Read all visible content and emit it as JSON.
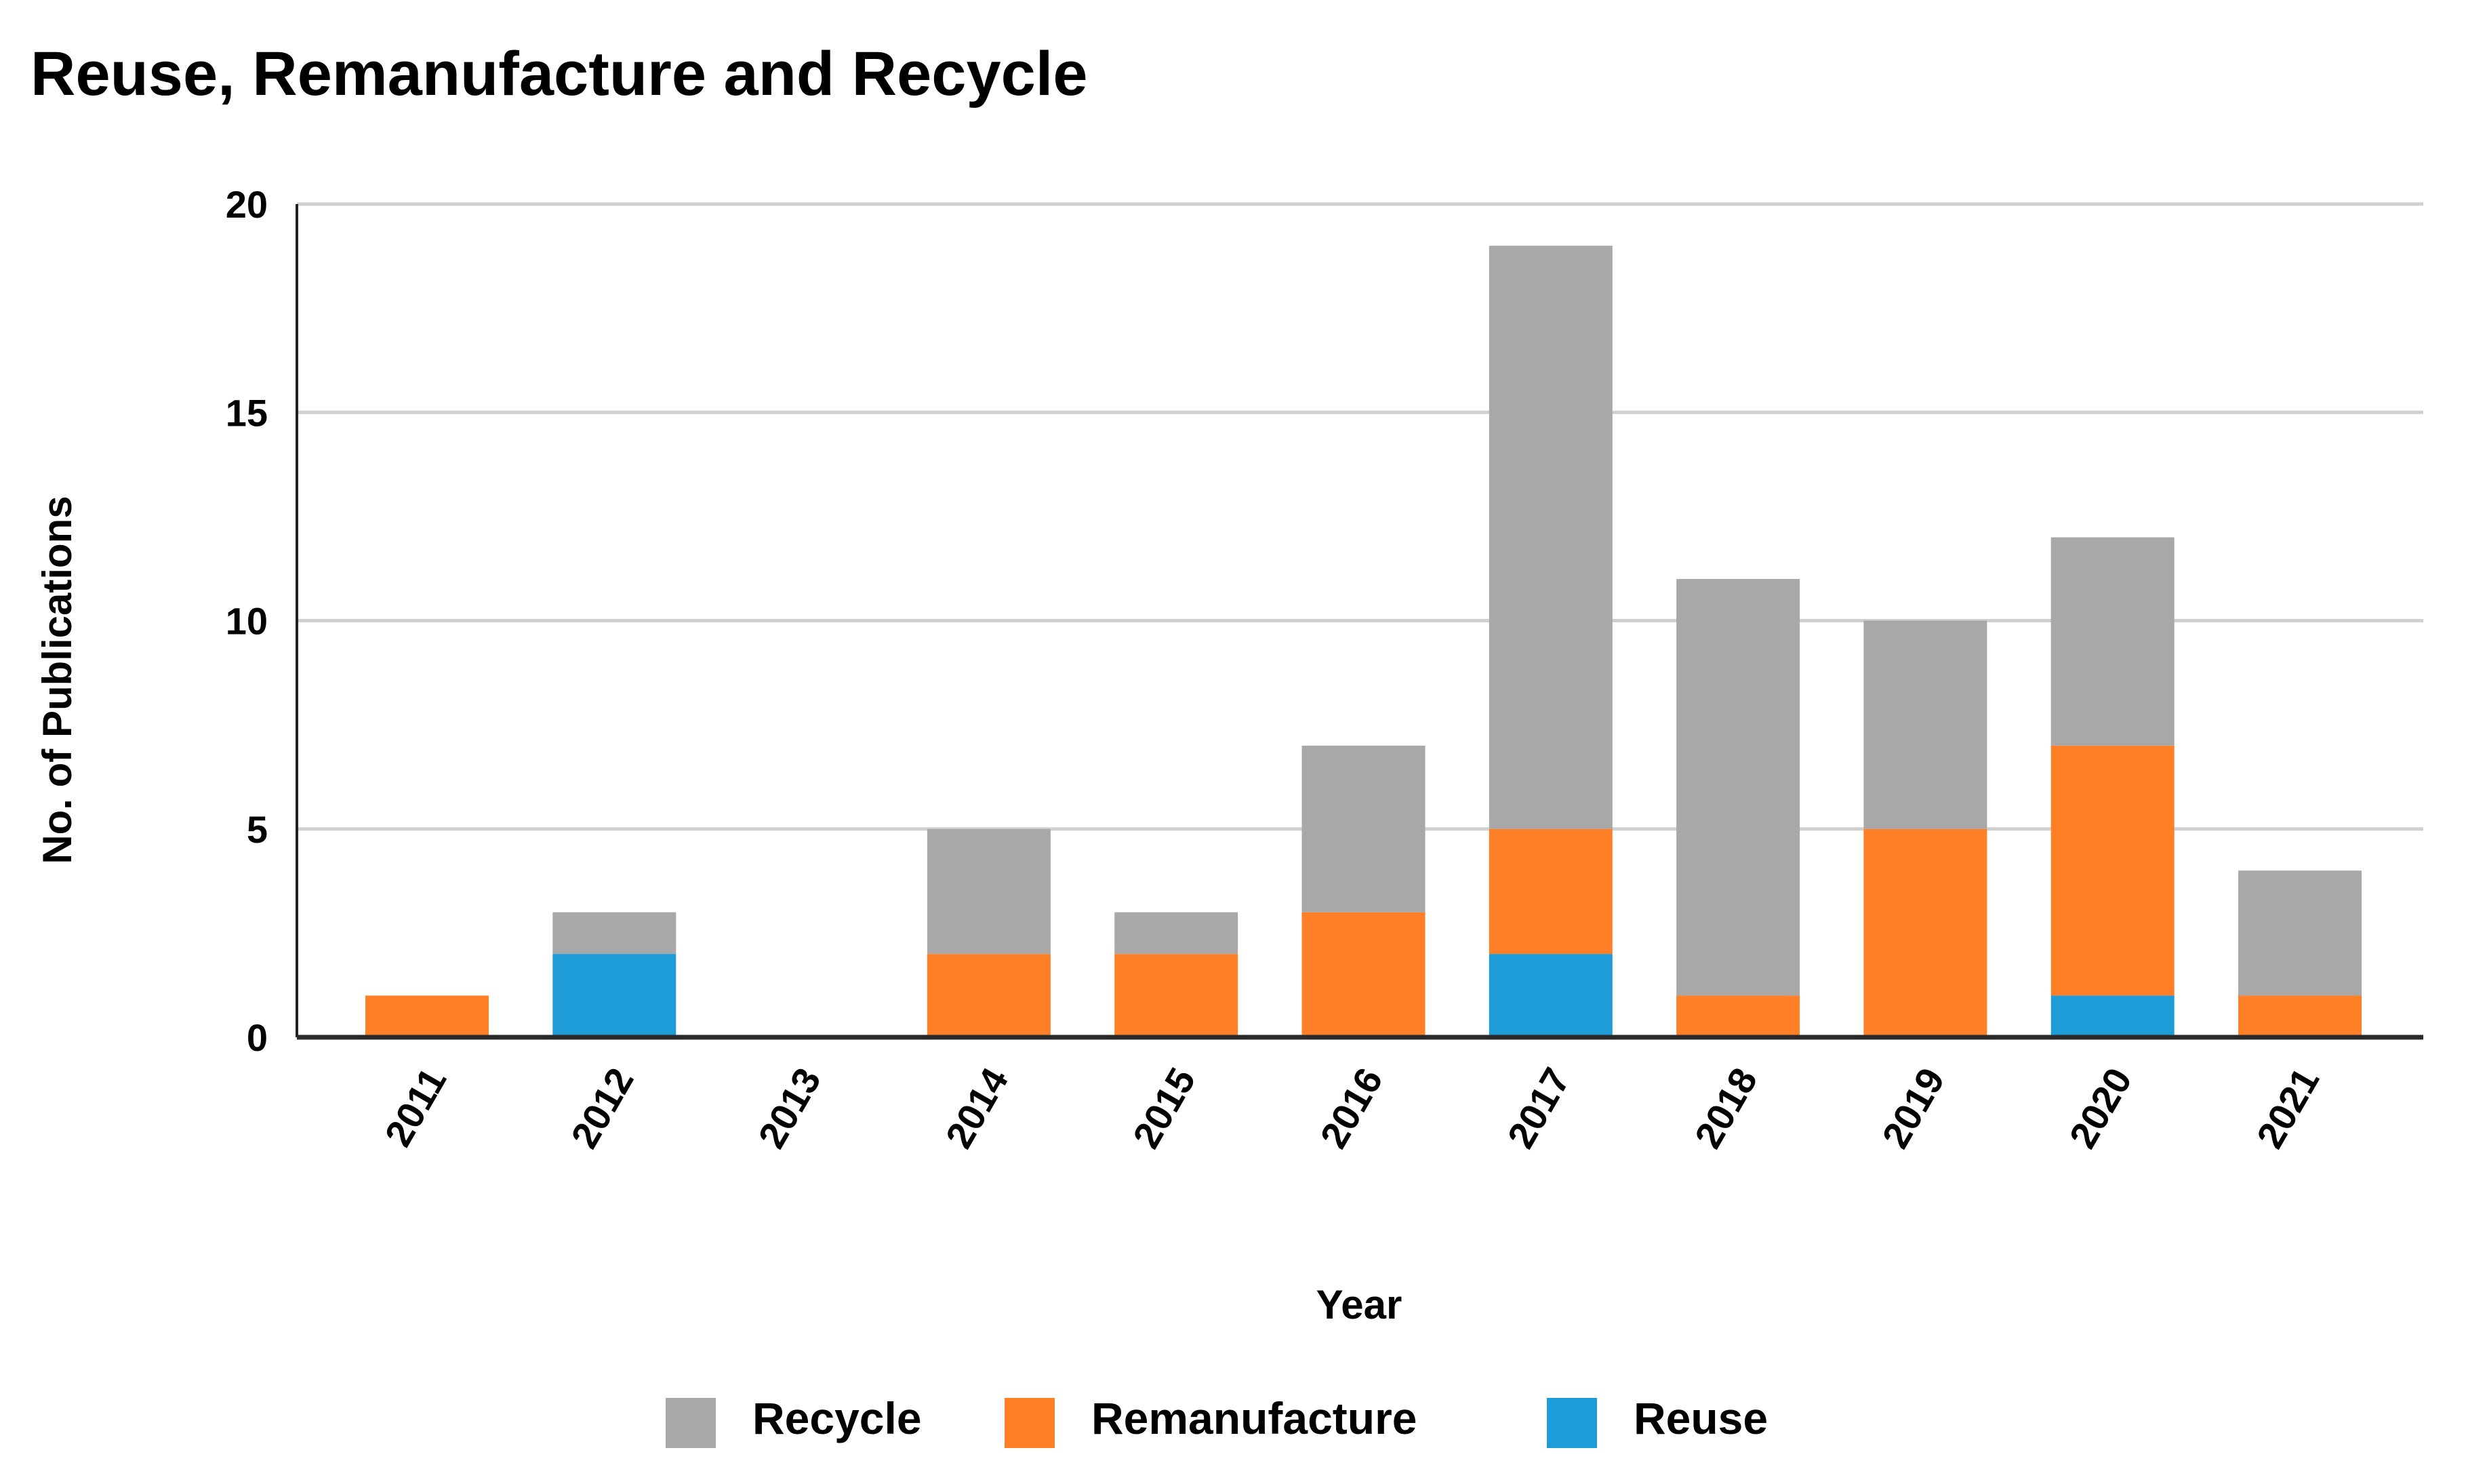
{
  "chart_data": {
    "type": "bar",
    "stacked": true,
    "title": "Reuse, Remanufacture and Recycle",
    "xlabel": "Year",
    "ylabel": "No. of Publications",
    "ylim": [
      0,
      20
    ],
    "yticks": [
      "0",
      "5",
      "10",
      "15",
      "20"
    ],
    "grid": true,
    "legend_position": "bottom",
    "categories": [
      "2011",
      "2012",
      "2013",
      "2014",
      "2015",
      "2016",
      "2017",
      "2018",
      "2019",
      "2020",
      "2021"
    ],
    "series": [
      {
        "name": "Reuse",
        "color": "#1E9CD8",
        "values": [
          0,
          2,
          0,
          0,
          0,
          0,
          2,
          0,
          0,
          1,
          0
        ]
      },
      {
        "name": "Remanufacture",
        "color": "#FF7F27",
        "values": [
          1,
          0,
          0,
          2,
          2,
          3,
          3,
          1,
          5,
          6,
          1
        ]
      },
      {
        "name": "Recycle",
        "color": "#A8A8A8",
        "values": [
          0,
          1,
          0,
          3,
          1,
          4,
          14,
          10,
          5,
          5,
          3
        ]
      }
    ],
    "legend_order": [
      "Recycle",
      "Remanufacture",
      "Reuse"
    ]
  }
}
